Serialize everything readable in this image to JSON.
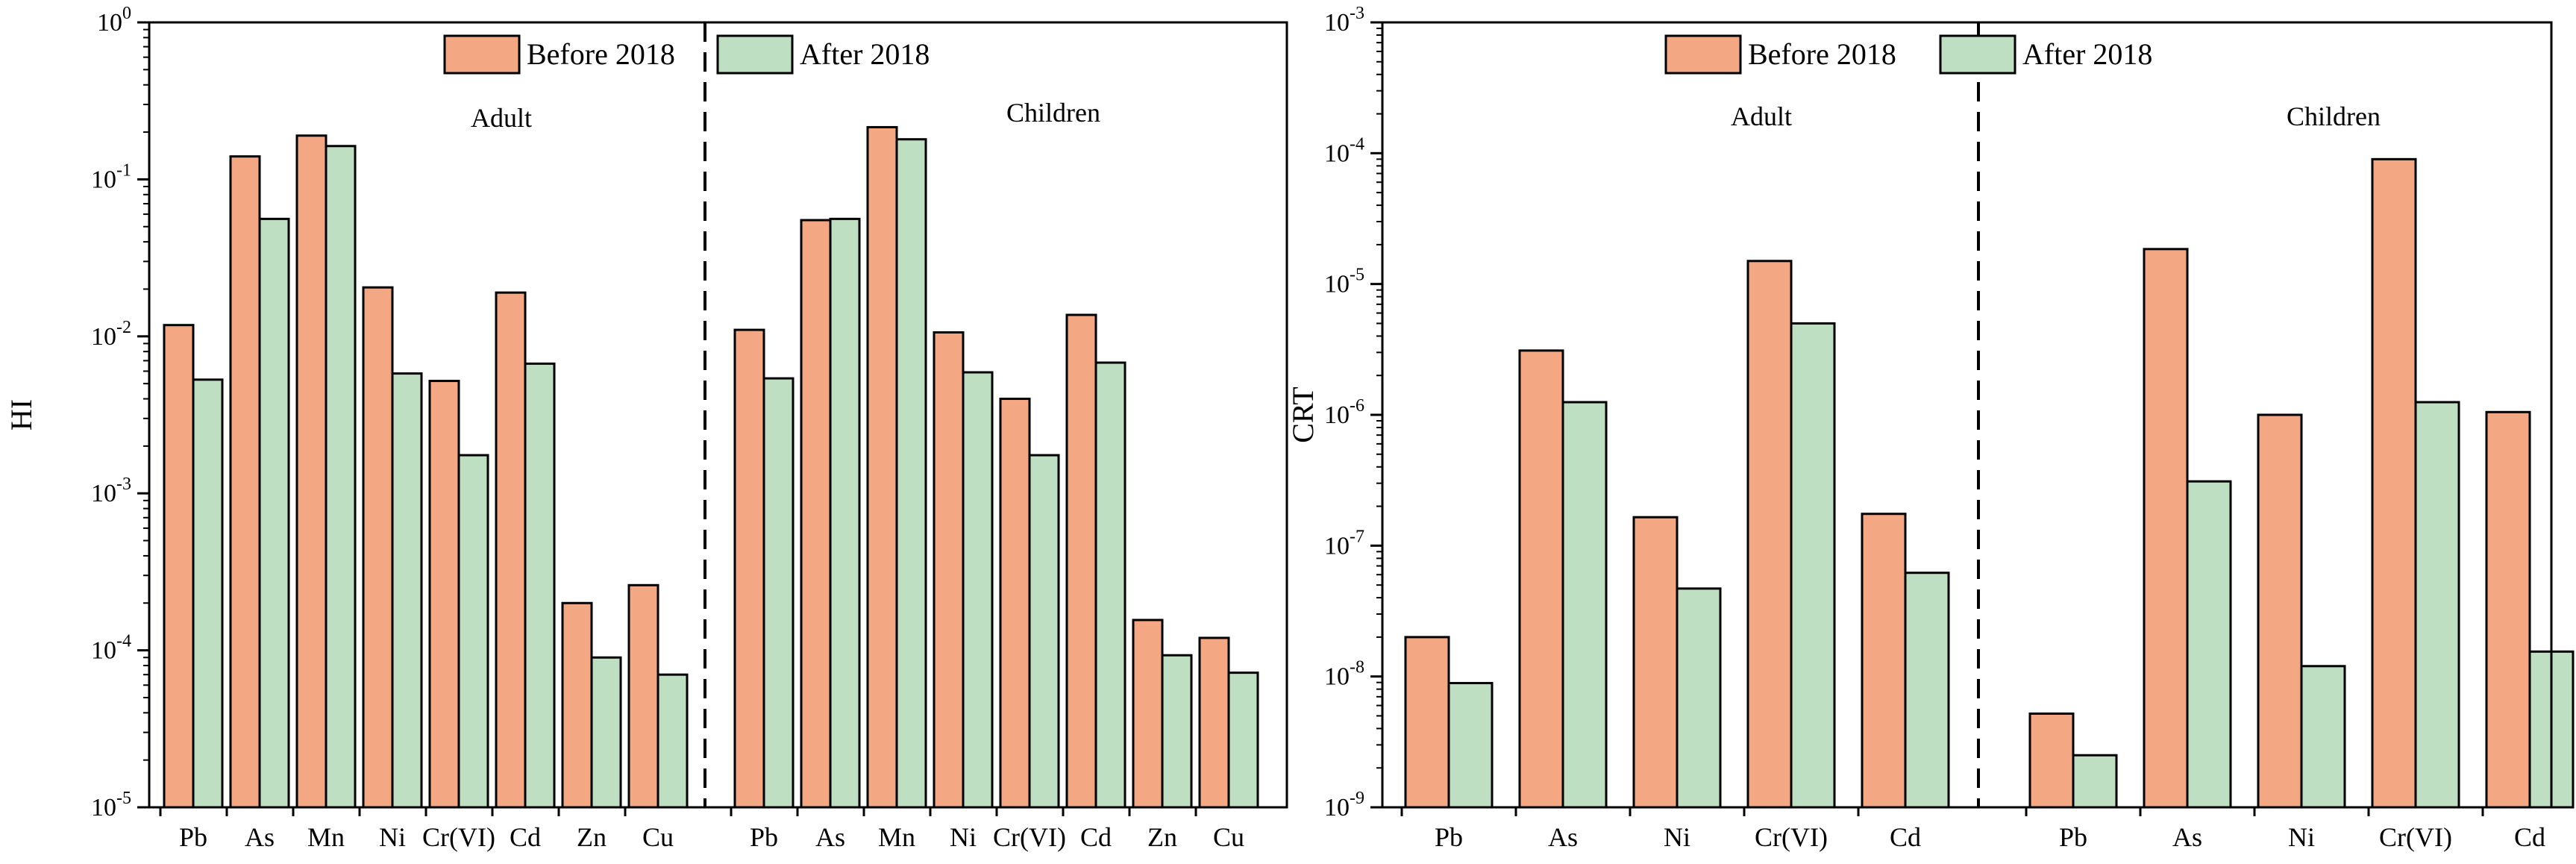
{
  "colors": {
    "before": "#f4a783",
    "after": "#bedfc1",
    "axis": "#000000"
  },
  "chart_data": [
    {
      "type": "bar",
      "yscale": "log",
      "ylabel": "HI",
      "ylim": [
        1e-05,
        1
      ],
      "ytick_exponents": [
        -5,
        -4,
        -3,
        -2,
        -1,
        0
      ],
      "legend": [
        "Before 2018",
        "After 2018"
      ],
      "groups": [
        {
          "label": "Adult",
          "categories": [
            "Pb",
            "As",
            "Mn",
            "Ni",
            "Cr(VI)",
            "Cd",
            "Zn",
            "Cu"
          ],
          "series": [
            {
              "name": "Before 2018",
              "values": [
                0.0118,
                0.14,
                0.19,
                0.0205,
                0.0052,
                0.019,
                0.0002,
                0.00026
              ]
            },
            {
              "name": "After 2018",
              "values": [
                0.0053,
                0.056,
                0.163,
                0.0058,
                0.00175,
                0.0067,
                9e-05,
                7e-05
              ]
            }
          ]
        },
        {
          "label": "Children",
          "categories": [
            "Pb",
            "As",
            "Mn",
            "Ni",
            "Cr(VI)",
            "Cd",
            "Zn",
            "Cu"
          ],
          "series": [
            {
              "name": "Before 2018",
              "values": [
                0.011,
                0.055,
                0.215,
                0.0106,
                0.004,
                0.0137,
                0.000156,
                0.00012
              ]
            },
            {
              "name": "After 2018",
              "values": [
                0.0054,
                0.056,
                0.18,
                0.0059,
                0.00175,
                0.0068,
                9.3e-05,
                7.2e-05
              ]
            }
          ]
        }
      ]
    },
    {
      "type": "bar",
      "yscale": "log",
      "ylabel": "CRT",
      "ylim": [
        1e-09,
        0.001
      ],
      "ytick_exponents": [
        -9,
        -8,
        -7,
        -6,
        -5,
        -4,
        -3
      ],
      "legend": [
        "Before 2018",
        "After 2018"
      ],
      "groups": [
        {
          "label": "Adult",
          "categories": [
            "Pb",
            "As",
            "Ni",
            "Cr(VI)",
            "Cd"
          ],
          "series": [
            {
              "name": "Before 2018",
              "values": [
                2e-08,
                3.1e-06,
                1.65e-07,
                1.5e-05,
                1.75e-07
              ]
            },
            {
              "name": "After 2018",
              "values": [
                8.9e-09,
                1.25e-06,
                4.7e-08,
                5e-06,
                6.2e-08
              ]
            }
          ]
        },
        {
          "label": "Children",
          "categories": [
            "Pb",
            "As",
            "Ni",
            "Cr(VI)",
            "Cd"
          ],
          "series": [
            {
              "name": "Before 2018",
              "values": [
                5.2e-09,
                1.85e-05,
                1e-06,
                9e-05,
                1.05e-06
              ]
            },
            {
              "name": "After 2018",
              "values": [
                2.5e-09,
                3.1e-07,
                1.2e-08,
                1.25e-06,
                1.55e-08
              ]
            }
          ]
        }
      ]
    }
  ]
}
